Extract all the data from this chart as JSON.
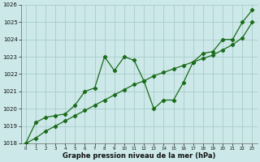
{
  "xlabel": "Graphe pression niveau de la mer (hPa)",
  "background_color": "#cce8e8",
  "grid_color": "#aacccc",
  "line_color": "#1a6b1a",
  "x_ticks": [
    0,
    1,
    2,
    3,
    4,
    5,
    6,
    7,
    8,
    9,
    10,
    11,
    12,
    13,
    14,
    15,
    16,
    17,
    18,
    19,
    20,
    21,
    22,
    23
  ],
  "ylim": [
    1018,
    1026
  ],
  "yticks": [
    1018,
    1019,
    1020,
    1021,
    1022,
    1023,
    1024,
    1025,
    1026
  ],
  "trend_x": [
    0,
    1,
    2,
    3,
    4,
    5,
    6,
    7,
    8,
    9,
    10,
    11,
    12,
    13,
    14,
    15,
    16,
    17,
    18,
    19,
    20,
    21,
    22,
    23
  ],
  "trend_y": [
    1018.0,
    1018.3,
    1018.7,
    1019.0,
    1019.3,
    1019.6,
    1019.9,
    1020.2,
    1020.5,
    1020.8,
    1021.1,
    1021.4,
    1021.6,
    1021.9,
    1022.1,
    1022.3,
    1022.5,
    1022.7,
    1022.9,
    1023.1,
    1023.4,
    1023.7,
    1024.1,
    1025.0
  ],
  "volatile_x": [
    0,
    1,
    2,
    3,
    4,
    5,
    6,
    7,
    8,
    9,
    10,
    11,
    12,
    13,
    14,
    15,
    16,
    17,
    18,
    19,
    20,
    21,
    22,
    23
  ],
  "volatile_y": [
    1018.0,
    1019.2,
    1019.5,
    1019.6,
    1019.7,
    1020.2,
    1021.0,
    1021.2,
    1023.0,
    1022.2,
    1023.0,
    1022.8,
    1021.6,
    1020.0,
    1020.5,
    1020.5,
    1021.5,
    1022.7,
    1023.2,
    1023.3,
    1024.0,
    1024.0,
    1025.0,
    1025.7
  ]
}
